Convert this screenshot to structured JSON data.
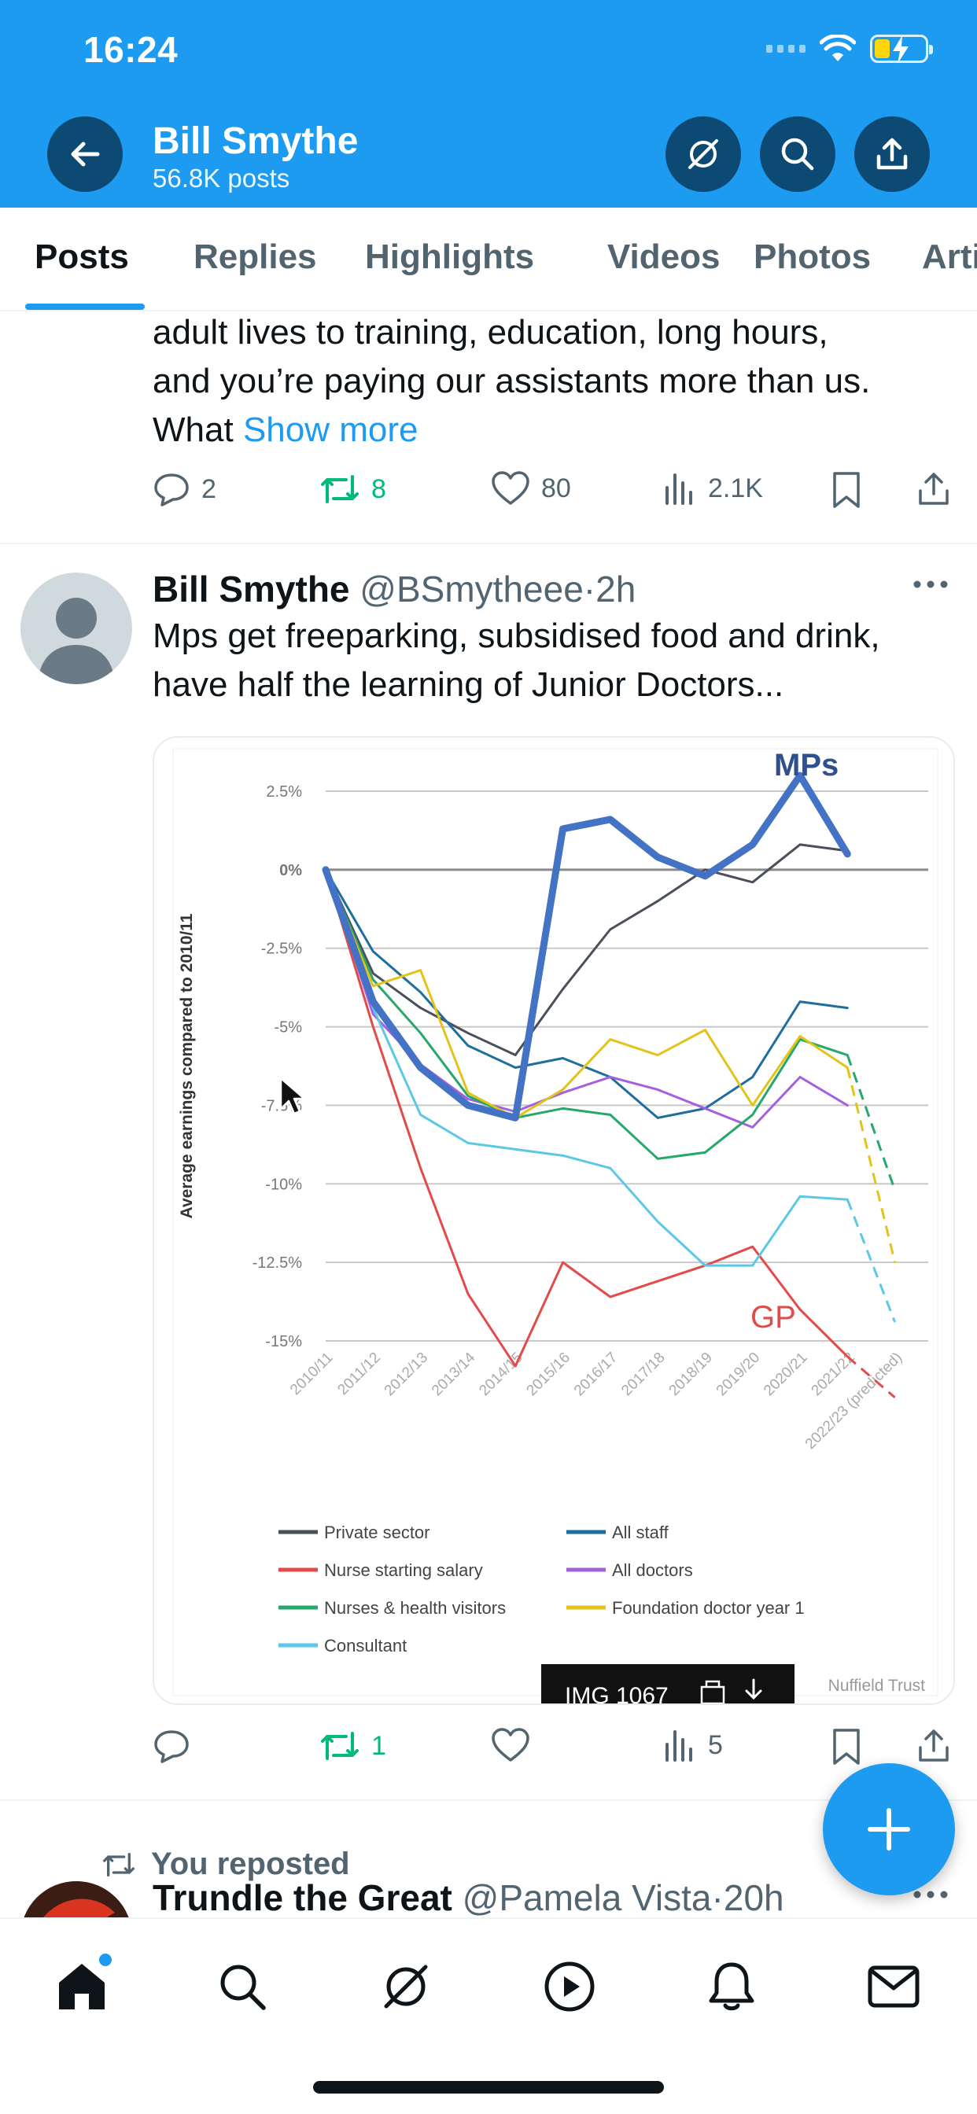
{
  "status_bar": {
    "time": "16:24"
  },
  "header": {
    "profile_name": "Bill Smythe",
    "post_count": "56.8K posts"
  },
  "tabs": [
    {
      "label": "Posts"
    },
    {
      "label": "Replies"
    },
    {
      "label": "Highlights"
    },
    {
      "label": "Videos"
    },
    {
      "label": "Photos"
    },
    {
      "label": "Articles"
    }
  ],
  "feed": {
    "prev_post": {
      "line1": "adult lives to training, education, long hours,",
      "line2": "and you’re paying our assistants more than us.",
      "line3": "What",
      "show_more": "Show more",
      "stats": {
        "replies": "2",
        "reposts": "8",
        "likes": "80",
        "views": "2.1K"
      }
    },
    "post": {
      "name": "Bill Smythe",
      "handle": "@BSmytheee",
      "sep": "·",
      "time": "2h",
      "line1": "Mps get freeparking, subsidised food and drink,",
      "line2": "have half the learning of Junior Doctors...",
      "stats": {
        "replies": "",
        "reposts": "1",
        "likes": "",
        "views": "5"
      },
      "image_overlay": {
        "label": "IMG 1067"
      }
    },
    "repost": {
      "label": "You reposted",
      "name": "Trundle the Great",
      "handle": "@Pamela Vista",
      "sep": "·",
      "time": "20h"
    }
  },
  "colors": {
    "brand": "#1d9bf0",
    "header_button": "#0d4a73",
    "repost_green": "#00ba7c",
    "text_secondary": "#536471"
  },
  "chart_data": {
    "type": "line",
    "ylabel": "Average earnings compared to 2010/11",
    "x": [
      "2010/11",
      "2011/12",
      "2012/13",
      "2013/14",
      "2014/15",
      "2015/16",
      "2016/17",
      "2017/18",
      "2018/19",
      "2019/20",
      "2020/21",
      "2021/22",
      "2022/23 (predicted)"
    ],
    "yticks": [
      "2.5%",
      "0%",
      "-2.5%",
      "-5%",
      "-7.5%",
      "-10%",
      "-12.5%",
      "-15%"
    ],
    "ylim": [
      -15,
      2.5
    ],
    "grid": true,
    "legend_position": "bottom",
    "annotations": [
      "MPs",
      "GP"
    ],
    "source": "Nuffield Trust",
    "series": [
      {
        "name": "Private sector",
        "color": "#4a4f5c",
        "width": 3,
        "values": [
          0,
          -3.3,
          -4.4,
          -5.2,
          -5.9,
          -3.8,
          -1.9,
          -1.0,
          0,
          -0.4,
          0.8,
          0.6,
          null
        ],
        "predicted_from": null
      },
      {
        "name": "All staff",
        "color": "#1f6e9c",
        "width": 3,
        "values": [
          0,
          -2.6,
          -3.9,
          -5.6,
          -6.3,
          -6.0,
          -6.6,
          -7.9,
          -7.6,
          -6.6,
          -4.2,
          -4.4,
          null
        ],
        "predicted_from": null
      },
      {
        "name": "Nurse starting salary",
        "color": "#e34a4a",
        "width": 3,
        "values": [
          0,
          -5.0,
          -9.5,
          -13.5,
          -15.8,
          -12.5,
          -13.6,
          -13.1,
          -12.6,
          -12.0,
          -14.0,
          -15.5,
          -16.8
        ],
        "predicted_from": 11
      },
      {
        "name": "All doctors",
        "color": "#a360e0",
        "width": 3,
        "values": [
          0,
          -4.6,
          -6.2,
          -7.3,
          -7.7,
          -7.1,
          -6.6,
          -7.0,
          -7.6,
          -8.2,
          -6.6,
          -7.5,
          null
        ],
        "predicted_from": null
      },
      {
        "name": "Nurses & health visitors",
        "color": "#27a86b",
        "width": 3,
        "values": [
          0,
          -3.5,
          -5.2,
          -7.2,
          -7.9,
          -7.6,
          -7.8,
          -9.2,
          -9.0,
          -7.8,
          -5.4,
          -5.9,
          -10.2
        ],
        "predicted_from": 11
      },
      {
        "name": "Foundation doctor year 1",
        "color": "#e3c31a",
        "width": 3,
        "values": [
          0,
          -3.7,
          -3.2,
          -7.1,
          -7.9,
          -7.0,
          -5.4,
          -5.9,
          -5.1,
          -7.5,
          -5.3,
          -6.3,
          -12.5
        ],
        "predicted_from": 11
      },
      {
        "name": "Consultant",
        "color": "#5cc8e6",
        "width": 3,
        "values": [
          0,
          -4.4,
          -7.8,
          -8.7,
          -8.9,
          -9.1,
          -9.5,
          -11.2,
          -12.6,
          -12.6,
          -10.4,
          -10.5,
          -14.4
        ],
        "predicted_from": 11
      },
      {
        "name": "",
        "label": "MPs",
        "color": "#4472c4",
        "width": 9,
        "values": [
          0,
          -4.2,
          -6.3,
          -7.5,
          -7.9,
          1.3,
          1.6,
          0.4,
          -0.2,
          0.8,
          3.0,
          0.5,
          null
        ],
        "predicted_from": null
      }
    ]
  }
}
